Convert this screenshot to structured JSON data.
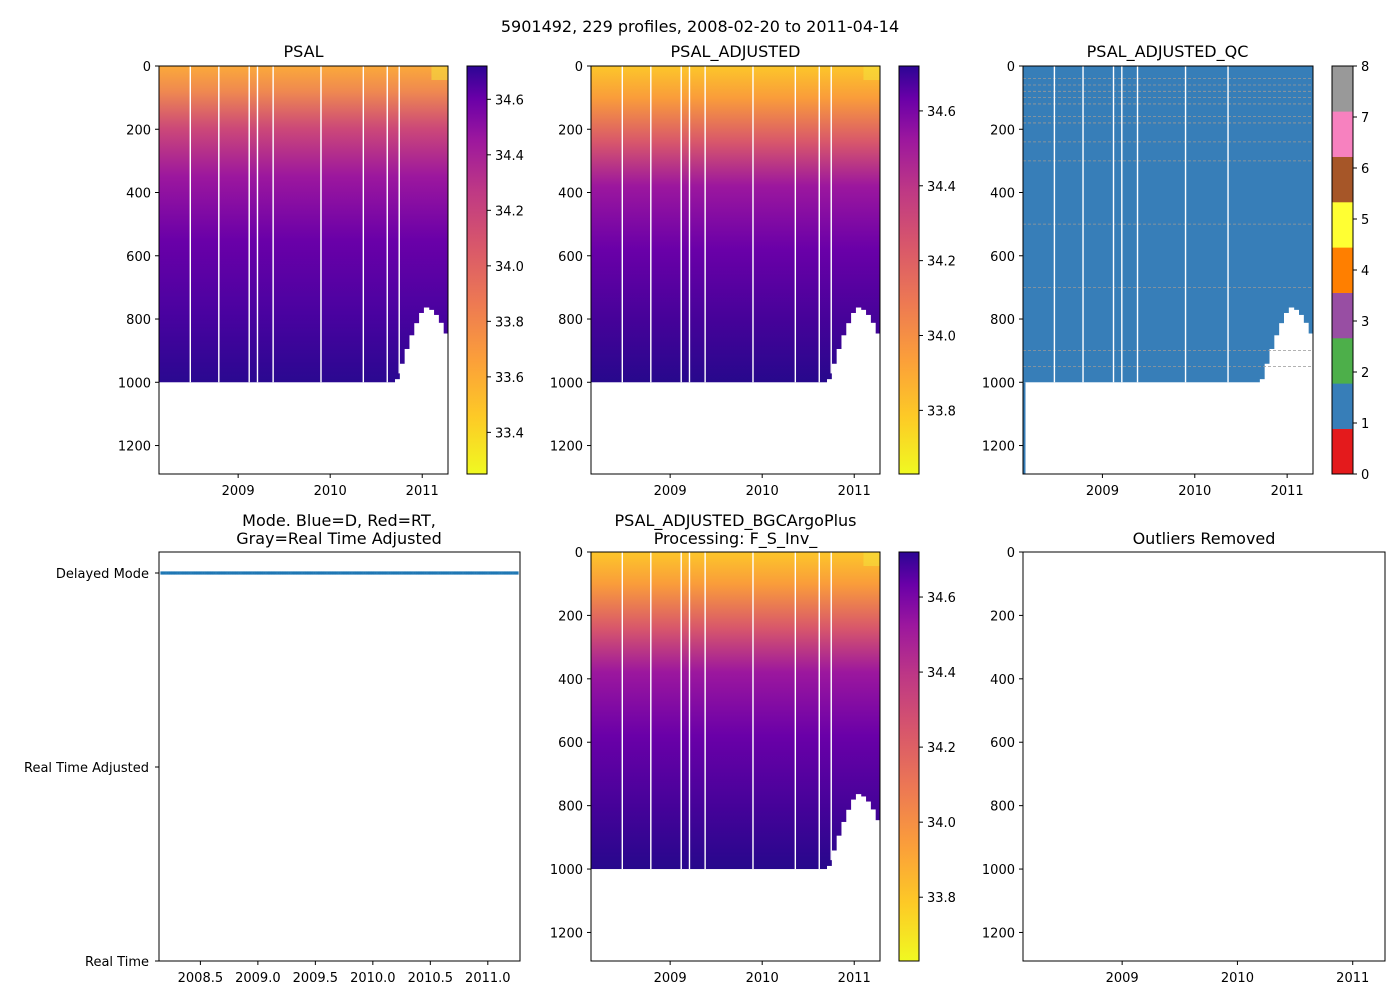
{
  "figure": {
    "suptitle": "5901492, 229 profiles, 2008-02-20 to 2011-04-14"
  },
  "chart_data": [
    {
      "id": "psal",
      "type": "heatmap",
      "title": "PSAL",
      "x_range": [
        2008.14,
        2011.28
      ],
      "xticks": [
        "2009",
        "2010",
        "2011"
      ],
      "xtick_values": [
        2009,
        2010,
        2011
      ],
      "ylim": [
        1290,
        0
      ],
      "yticks": [
        "0",
        "200",
        "400",
        "600",
        "800",
        "1000",
        "1200"
      ],
      "ytick_values": [
        0,
        200,
        400,
        600,
        800,
        1000,
        1200
      ],
      "colormap": "plasma_r",
      "color_range": [
        33.25,
        34.72
      ],
      "colorbar_ticks": [
        "33.4",
        "33.6",
        "33.8",
        "34.0",
        "34.2",
        "34.4",
        "34.6"
      ],
      "colorbar_tick_values": [
        33.4,
        33.6,
        33.8,
        34.0,
        34.2,
        34.4,
        34.6
      ],
      "surface_value": 33.85,
      "deep_value": 34.68
    },
    {
      "id": "psal-adjusted",
      "type": "heatmap",
      "title": "PSAL_ADJUSTED",
      "x_range": [
        2008.14,
        2011.28
      ],
      "xticks": [
        "2009",
        "2010",
        "2011"
      ],
      "xtick_values": [
        2009,
        2010,
        2011
      ],
      "ylim": [
        1290,
        0
      ],
      "yticks": [
        "0",
        "200",
        "400",
        "600",
        "800",
        "1000",
        "1200"
      ],
      "ytick_values": [
        0,
        200,
        400,
        600,
        800,
        1000,
        1200
      ],
      "colormap": "plasma_r",
      "color_range": [
        33.63,
        34.72
      ],
      "colorbar_ticks": [
        "33.8",
        "34.0",
        "34.2",
        "34.4",
        "34.6"
      ],
      "colorbar_tick_values": [
        33.8,
        34.0,
        34.2,
        34.4,
        34.6
      ],
      "surface_value": 33.8,
      "deep_value": 34.68
    },
    {
      "id": "psal-adjusted-qc",
      "type": "heatmap",
      "title": "PSAL_ADJUSTED_QC",
      "x_range": [
        2008.14,
        2011.28
      ],
      "xticks": [
        "2009",
        "2010",
        "2011"
      ],
      "xtick_values": [
        2009,
        2010,
        2011
      ],
      "ylim": [
        1290,
        0
      ],
      "yticks": [
        "0",
        "200",
        "400",
        "600",
        "800",
        "1000",
        "1200"
      ],
      "ytick_values": [
        0,
        200,
        400,
        600,
        800,
        1000,
        1200
      ],
      "dominant_flag": 1,
      "qc_colors": [
        "#e41a1c",
        "#377eb8",
        "#4daf4a",
        "#984ea3",
        "#ff7f00",
        "#ffff33",
        "#a65628",
        "#f781bf",
        "#999999"
      ],
      "colorbar_ticks": [
        "0",
        "1",
        "2",
        "3",
        "4",
        "5",
        "6",
        "7",
        "8"
      ],
      "colorbar_tick_values": [
        0,
        1,
        2,
        3,
        4,
        5,
        6,
        7,
        8
      ]
    },
    {
      "id": "mode",
      "type": "scatter",
      "title_lines": [
        "Mode. Blue=D, Red=RT,",
        "Gray=Real Time Adjusted"
      ],
      "x_range": [
        2008.14,
        2011.28
      ],
      "xticks": [
        "2008.5",
        "2009.0",
        "2009.5",
        "2010.0",
        "2010.5",
        "2011.0"
      ],
      "xtick_values": [
        2008.5,
        2009.0,
        2009.5,
        2010.0,
        2010.5,
        2011.0
      ],
      "categories": [
        "Delayed Mode",
        "Real Time Adjusted",
        "Real Time"
      ],
      "category_values": [
        2,
        1,
        0
      ],
      "point_category": 2,
      "point_color": "#1f77b4",
      "point_count": 229
    },
    {
      "id": "bgc",
      "type": "heatmap",
      "title_lines": [
        "PSAL_ADJUSTED_BGCArgoPlus",
        "Processing: F_S_Inv_"
      ],
      "x_range": [
        2008.14,
        2011.28
      ],
      "xticks": [
        "2009",
        "2010",
        "2011"
      ],
      "xtick_values": [
        2009,
        2010,
        2011
      ],
      "ylim": [
        1290,
        0
      ],
      "yticks": [
        "0",
        "200",
        "400",
        "600",
        "800",
        "1000",
        "1200"
      ],
      "ytick_values": [
        0,
        200,
        400,
        600,
        800,
        1000,
        1200
      ],
      "colormap": "plasma_r",
      "color_range": [
        33.63,
        34.72
      ],
      "colorbar_ticks": [
        "33.8",
        "34.0",
        "34.2",
        "34.4",
        "34.6"
      ],
      "colorbar_tick_values": [
        33.8,
        34.0,
        34.2,
        34.4,
        34.6
      ],
      "surface_value": 33.8,
      "deep_value": 34.68
    },
    {
      "id": "outliers",
      "type": "scatter",
      "title": "Outliers Removed",
      "x_range": [
        2008.14,
        2011.28
      ],
      "xticks": [
        "2009",
        "2010",
        "2011"
      ],
      "xtick_values": [
        2009,
        2010,
        2011
      ],
      "ylim": [
        1290,
        0
      ],
      "yticks": [
        "0",
        "200",
        "400",
        "600",
        "800",
        "1000",
        "1200"
      ],
      "ytick_values": [
        0,
        200,
        400,
        600,
        800,
        1000,
        1200
      ],
      "points": []
    }
  ]
}
